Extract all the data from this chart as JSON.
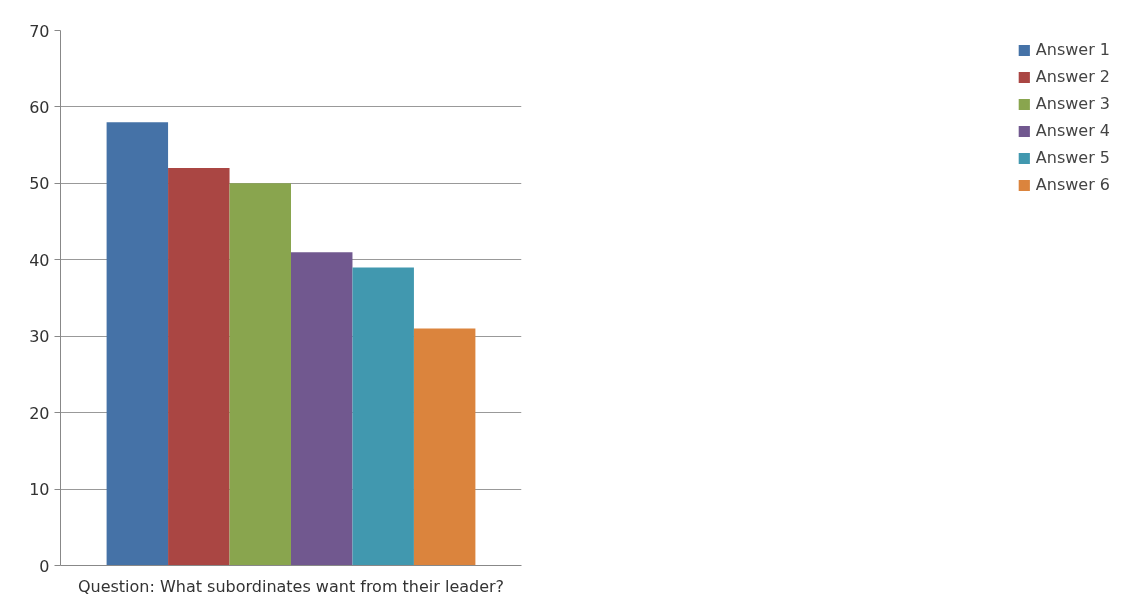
{
  "chart_data": {
    "type": "bar",
    "categories": [
      "Question: What subordinates want from their leader?"
    ],
    "series": [
      {
        "name": "Answer 1",
        "color": "#4572a7",
        "values": [
          58
        ]
      },
      {
        "name": "Answer 2",
        "color": "#aa4643",
        "values": [
          52
        ]
      },
      {
        "name": "Answer 3",
        "color": "#89a54e",
        "values": [
          50
        ]
      },
      {
        "name": "Answer 4",
        "color": "#71588f",
        "values": [
          41
        ]
      },
      {
        "name": "Answer 5",
        "color": "#4198af",
        "values": [
          39
        ]
      },
      {
        "name": "Answer 6",
        "color": "#db843d",
        "values": [
          31
        ]
      }
    ],
    "ylim": [
      0,
      70
    ],
    "yticks": [
      0,
      10,
      20,
      30,
      40,
      50,
      60,
      70
    ],
    "grid": "y",
    "legend": "right"
  }
}
